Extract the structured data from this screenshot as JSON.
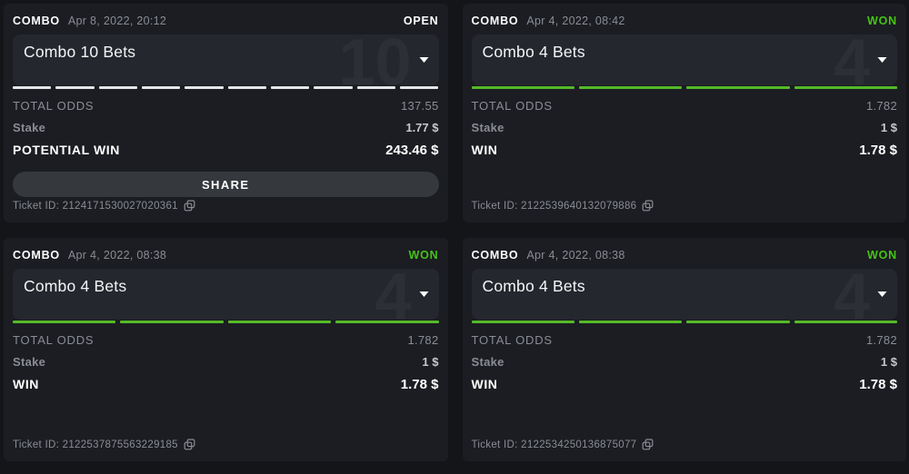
{
  "colors": {
    "page_bg": "#141519",
    "card_bg": "#1b1d22",
    "panel_bg": "#24272d",
    "ghost_number": "#2c2f36",
    "muted_text": "#8a8d93",
    "stake_value_text": "#c6c8cb",
    "white": "#ffffff",
    "status_won_green": "#46c414",
    "bar_won_green": "#54ba28",
    "bar_open": "#e5e6e8",
    "share_bg": "#35383d"
  },
  "labels": {
    "total_odds": "TOTAL ODDS",
    "stake": "Stake",
    "ticket_prefix": "Ticket ID:"
  },
  "cards": [
    {
      "type_label": "COMBO",
      "datetime": "Apr 8, 2022, 20:12",
      "status": "OPEN",
      "won": false,
      "title": "Combo 10 Bets",
      "bet_count": "10",
      "segments": 10,
      "total_odds": "137.55",
      "stake": "1.77 $",
      "win_label": "POTENTIAL WIN",
      "win_value": "243.46 $",
      "has_share": true,
      "share_label": "SHARE",
      "ticket_id": "2124171530027020361"
    },
    {
      "type_label": "COMBO",
      "datetime": "Apr 4, 2022, 08:42",
      "status": "WON",
      "won": true,
      "title": "Combo 4 Bets",
      "bet_count": "4",
      "segments": 4,
      "total_odds": "1.782",
      "stake": "1 $",
      "win_label": "WIN",
      "win_value": "1.78 $",
      "has_share": false,
      "share_label": "",
      "ticket_id": "2122539640132079886"
    },
    {
      "type_label": "COMBO",
      "datetime": "Apr 4, 2022, 08:38",
      "status": "WON",
      "won": true,
      "title": "Combo 4 Bets",
      "bet_count": "4",
      "segments": 4,
      "total_odds": "1.782",
      "stake": "1 $",
      "win_label": "WIN",
      "win_value": "1.78 $",
      "has_share": false,
      "share_label": "",
      "ticket_id": "2122537875563229185"
    },
    {
      "type_label": "COMBO",
      "datetime": "Apr 4, 2022, 08:38",
      "status": "WON",
      "won": true,
      "title": "Combo 4 Bets",
      "bet_count": "4",
      "segments": 4,
      "total_odds": "1.782",
      "stake": "1 $",
      "win_label": "WIN",
      "win_value": "1.78 $",
      "has_share": false,
      "share_label": "",
      "ticket_id": "2122534250136875077"
    }
  ]
}
